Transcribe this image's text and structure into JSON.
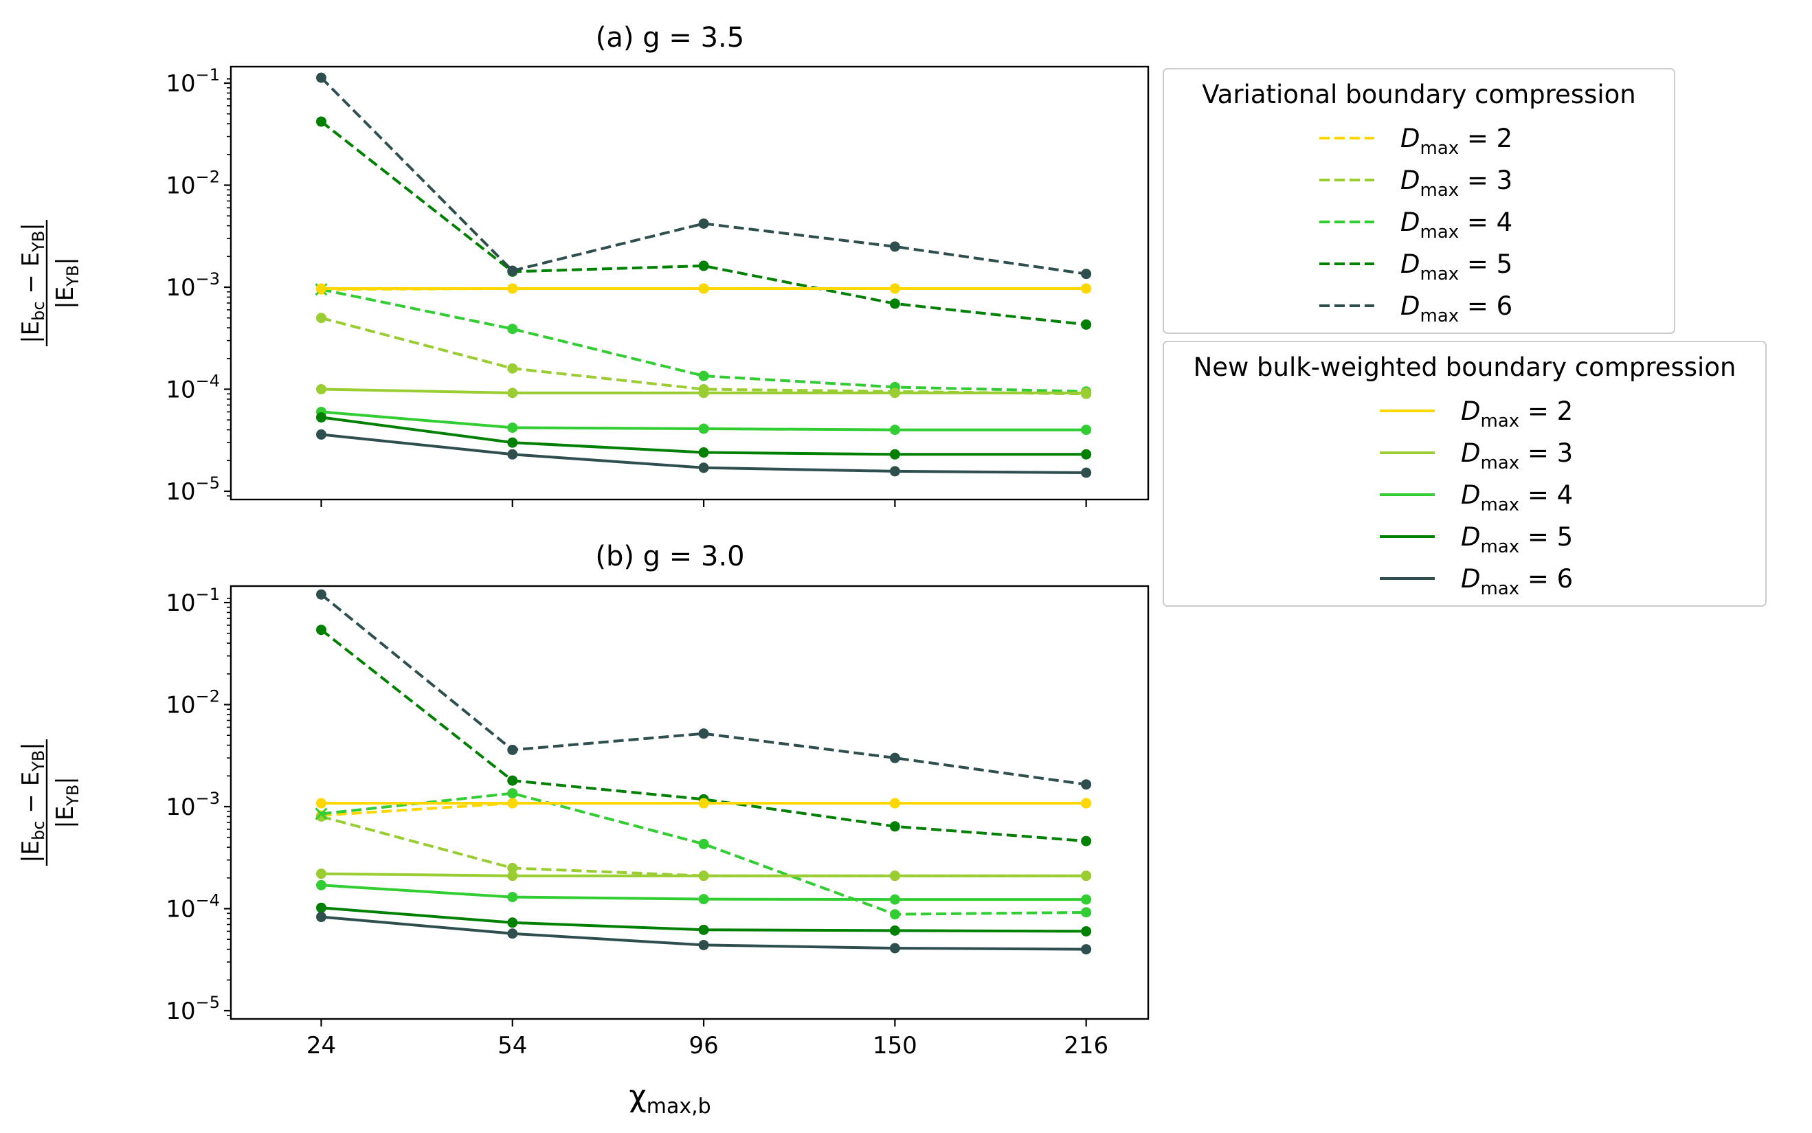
{
  "colors": {
    "D2": "#ffd700",
    "D3": "#9acd32",
    "D4": "#32cd32",
    "D5": "#008000",
    "D6": "#2f4f4f"
  },
  "xlabel": "χmax,b",
  "ylabel": "|Ebc − EYB| / |EYB|",
  "legend": [
    {
      "title": "Variational boundary compression",
      "linestyle": "dashed",
      "entries": [
        {
          "label": "Dmax = 2",
          "color_key": "D2"
        },
        {
          "label": "Dmax = 3",
          "color_key": "D3"
        },
        {
          "label": "Dmax = 4",
          "color_key": "D4"
        },
        {
          "label": "Dmax = 5",
          "color_key": "D5"
        },
        {
          "label": "Dmax = 6",
          "color_key": "D6"
        }
      ]
    },
    {
      "title": "New bulk-weighted boundary compression",
      "linestyle": "solid",
      "entries": [
        {
          "label": "Dmax = 2",
          "color_key": "D2"
        },
        {
          "label": "Dmax = 3",
          "color_key": "D3"
        },
        {
          "label": "Dmax = 4",
          "color_key": "D4"
        },
        {
          "label": "Dmax = 5",
          "color_key": "D5"
        },
        {
          "label": "Dmax = 6",
          "color_key": "D6"
        }
      ]
    }
  ],
  "chart_data": [
    {
      "type": "line",
      "title": "(a) g = 3.5",
      "x": [
        24,
        54,
        96,
        150,
        216
      ],
      "xticks": [
        "24",
        "54",
        "96",
        "150",
        "216"
      ],
      "yscale": "log",
      "ylim": [
        8e-06,
        0.15
      ],
      "yticks": [
        "10−1",
        "10−2",
        "10−3",
        "10−4",
        "10−5"
      ],
      "series": [
        {
          "name": "Dmax = 2",
          "group": "variational",
          "color_key": "D2",
          "values": [
            0.00095,
            0.00097,
            0.00097,
            0.00097,
            0.00097
          ]
        },
        {
          "name": "Dmax = 3",
          "group": "variational",
          "color_key": "D3",
          "values": [
            0.0005,
            0.00016,
            0.0001,
            9.5e-05,
            9e-05
          ]
        },
        {
          "name": "Dmax = 4",
          "group": "variational",
          "color_key": "D4",
          "values": [
            0.00095,
            0.00039,
            0.000135,
            0.000105,
            9.5e-05
          ]
        },
        {
          "name": "Dmax = 5",
          "group": "variational",
          "color_key": "D5",
          "values": [
            0.042,
            0.00142,
            0.00162,
            0.00069,
            0.00043
          ]
        },
        {
          "name": "Dmax = 6",
          "group": "variational",
          "color_key": "D6",
          "values": [
            0.113,
            0.00145,
            0.0042,
            0.0025,
            0.00135
          ]
        },
        {
          "name": "Dmax = 2",
          "group": "bulk-weighted",
          "color_key": "D2",
          "values": [
            0.00097,
            0.00097,
            0.00097,
            0.00097,
            0.00097
          ]
        },
        {
          "name": "Dmax = 3",
          "group": "bulk-weighted",
          "color_key": "D3",
          "values": [
            0.0001,
            9.2e-05,
            9.2e-05,
            9.2e-05,
            9.2e-05
          ]
        },
        {
          "name": "Dmax = 4",
          "group": "bulk-weighted",
          "color_key": "D4",
          "values": [
            6e-05,
            4.2e-05,
            4.1e-05,
            4e-05,
            4e-05
          ]
        },
        {
          "name": "Dmax = 5",
          "group": "bulk-weighted",
          "color_key": "D5",
          "values": [
            5.3e-05,
            3e-05,
            2.4e-05,
            2.3e-05,
            2.3e-05
          ]
        },
        {
          "name": "Dmax = 6",
          "group": "bulk-weighted",
          "color_key": "D6",
          "values": [
            3.6e-05,
            2.3e-05,
            1.7e-05,
            1.57e-05,
            1.52e-05
          ]
        }
      ]
    },
    {
      "type": "line",
      "title": "(b) g = 3.0",
      "x": [
        24,
        54,
        96,
        150,
        216
      ],
      "xticks": [
        "24",
        "54",
        "96",
        "150",
        "216"
      ],
      "yscale": "log",
      "ylim": [
        8e-06,
        0.15
      ],
      "yticks": [
        "10−1",
        "10−2",
        "10−3",
        "10−4",
        "10−5"
      ],
      "series": [
        {
          "name": "Dmax = 2",
          "group": "variational",
          "color_key": "D2",
          "values": [
            0.00082,
            0.00108,
            0.00108,
            0.00108,
            0.00108
          ]
        },
        {
          "name": "Dmax = 3",
          "group": "variational",
          "color_key": "D3",
          "values": [
            0.0008,
            0.00025,
            0.00021,
            0.00021,
            0.00021
          ]
        },
        {
          "name": "Dmax = 4",
          "group": "variational",
          "color_key": "D4",
          "values": [
            0.00085,
            0.00135,
            0.00043,
            8.8e-05,
            9.2e-05
          ]
        },
        {
          "name": "Dmax = 5",
          "group": "variational",
          "color_key": "D5",
          "values": [
            0.054,
            0.0018,
            0.00118,
            0.00064,
            0.00046
          ]
        },
        {
          "name": "Dmax = 6",
          "group": "variational",
          "color_key": "D6",
          "values": [
            0.12,
            0.0036,
            0.0052,
            0.003,
            0.00165
          ]
        },
        {
          "name": "Dmax = 2",
          "group": "bulk-weighted",
          "color_key": "D2",
          "values": [
            0.00108,
            0.00108,
            0.00108,
            0.00108,
            0.00108
          ]
        },
        {
          "name": "Dmax = 3",
          "group": "bulk-weighted",
          "color_key": "D3",
          "values": [
            0.00022,
            0.00021,
            0.00021,
            0.00021,
            0.00021
          ]
        },
        {
          "name": "Dmax = 4",
          "group": "bulk-weighted",
          "color_key": "D4",
          "values": [
            0.00017,
            0.00013,
            0.000124,
            0.000123,
            0.000123
          ]
        },
        {
          "name": "Dmax = 5",
          "group": "bulk-weighted",
          "color_key": "D5",
          "values": [
            0.000102,
            7.3e-05,
            6.2e-05,
            6.1e-05,
            6e-05
          ]
        },
        {
          "name": "Dmax = 6",
          "group": "bulk-weighted",
          "color_key": "D6",
          "values": [
            8.3e-05,
            5.7e-05,
            4.4e-05,
            4.1e-05,
            4e-05
          ]
        }
      ]
    }
  ]
}
